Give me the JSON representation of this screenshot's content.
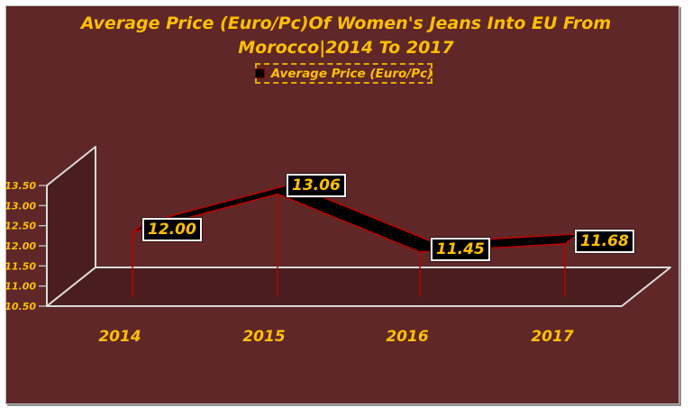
{
  "title": {
    "line1": "Average Price (Euro/Pc)Of Women's Jeans Into EU From",
    "line2": "Morocco|2014 To 2017"
  },
  "legend": {
    "label": "Average Price (Euro/Pc)"
  },
  "chart_data": {
    "type": "line",
    "subtype": "3d-ribbon-line",
    "title": "Average Price (Euro/Pc)Of Women's Jeans Into EU From Morocco|2014 To 2017",
    "categories": [
      "2014",
      "2015",
      "2016",
      "2017"
    ],
    "series": [
      {
        "name": "Average Price (Euro/Pc)",
        "values": [
          12.0,
          13.06,
          11.45,
          11.68
        ]
      }
    ],
    "data_labels": [
      "12.00",
      "13.06",
      "11.45",
      "11.68"
    ],
    "ylim": [
      10.5,
      13.5
    ],
    "ytick_step": 0.5,
    "ytick_labels": [
      "13.50",
      "13.00",
      "12.50",
      "12.00",
      "11.50",
      "11.00",
      "10.50"
    ],
    "xlabel": "",
    "ylabel": "",
    "grid": false,
    "legend_position": "top-center"
  },
  "colors": {
    "background": "#5F2727",
    "panel_fill": "#4A1E1E",
    "panel_edge": "#DCDCDC",
    "tick": "#C9C9C9",
    "gold": "#FFBF00",
    "label_gold": "#FFC000",
    "ribbon_fill": "#000000",
    "ribbon_edge": "#BE0000",
    "drop_line": "#BE0000",
    "label_box_bg": "#000000",
    "label_box_border": "#F5F5F5",
    "legend_border": "#E3A800",
    "frame_border": "#B5B5B5"
  }
}
